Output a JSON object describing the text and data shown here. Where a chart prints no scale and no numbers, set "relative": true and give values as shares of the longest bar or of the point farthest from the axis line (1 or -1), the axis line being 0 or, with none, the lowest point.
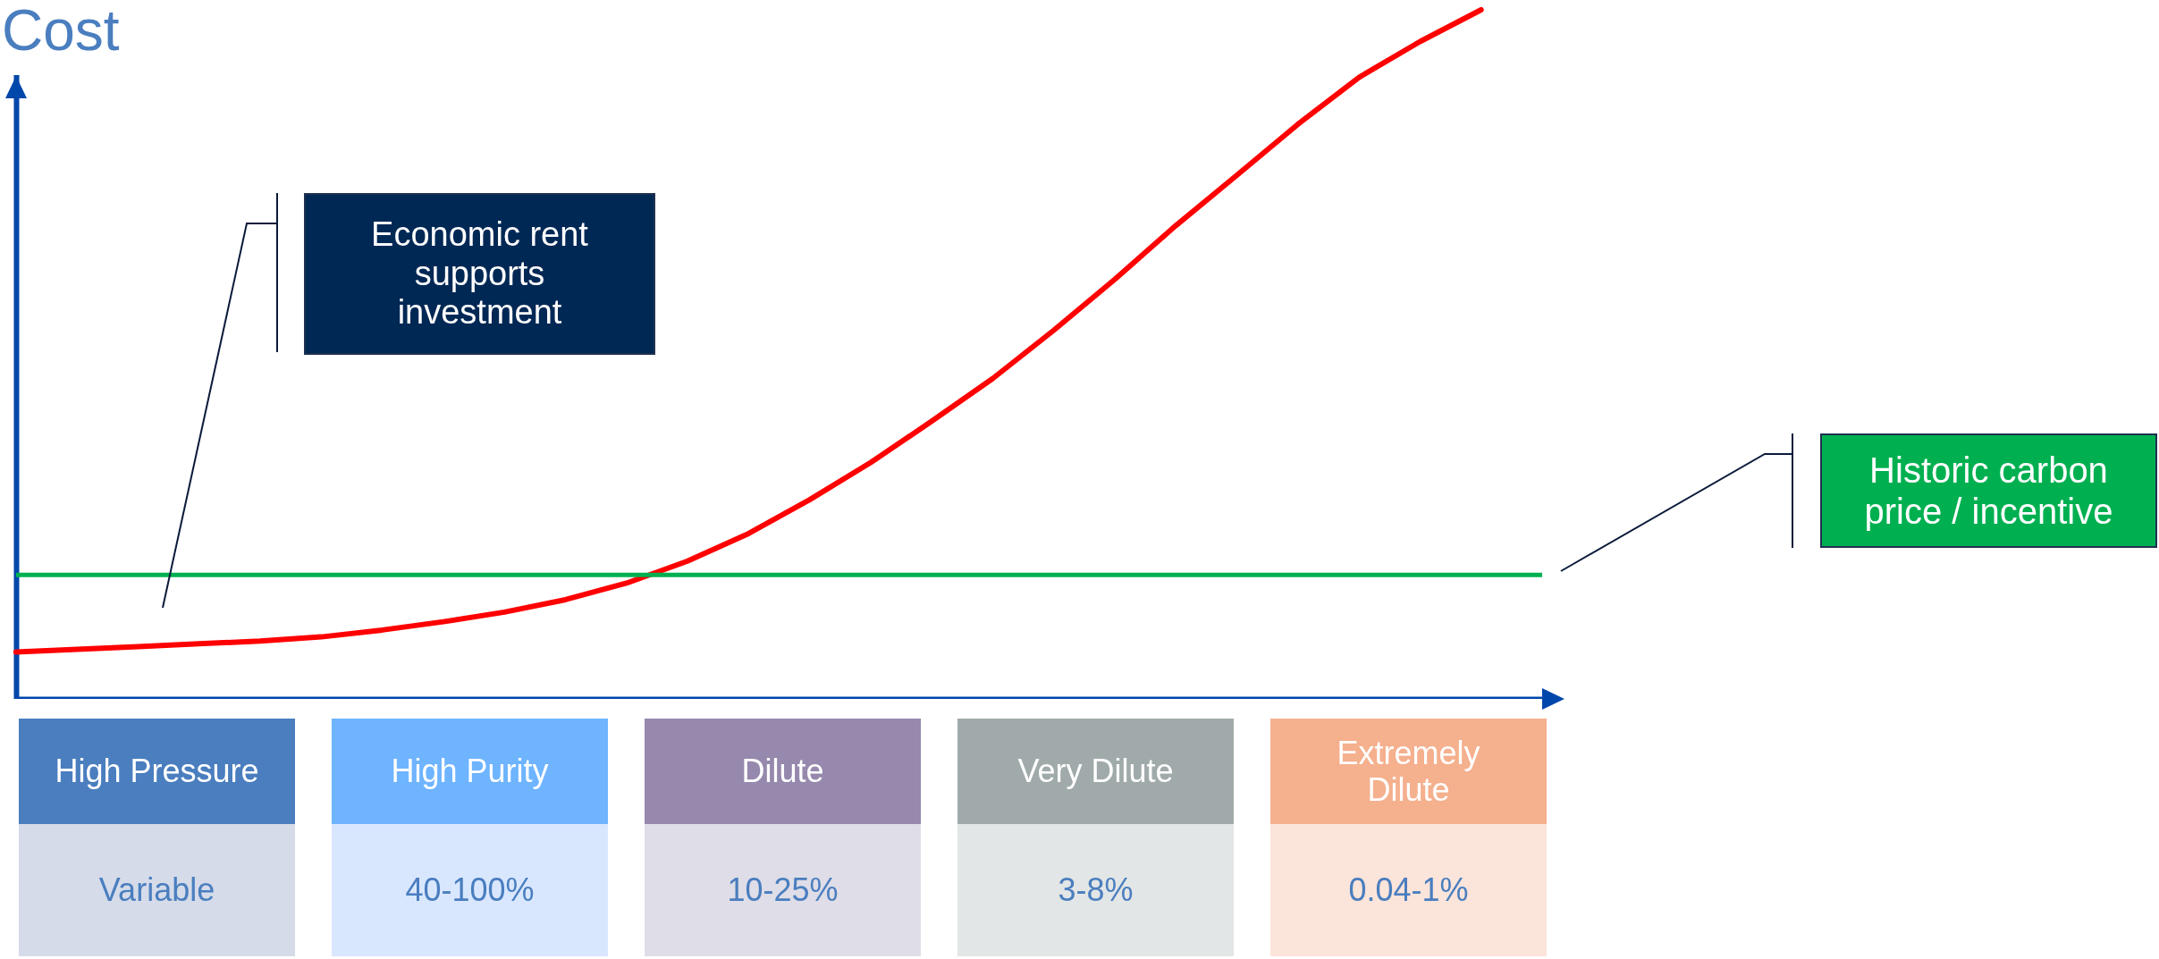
{
  "chart_data": {
    "type": "line",
    "relative": true,
    "ylabel": "Cost",
    "categories": [
      null,
      null,
      null,
      null,
      null,
      null,
      null,
      null,
      null,
      null,
      null,
      null,
      null,
      null,
      null,
      null,
      null,
      null,
      null,
      null,
      null,
      null,
      null,
      null,
      null,
      null
    ],
    "series": [
      {
        "color": "#ff0000",
        "values": [
          0.068,
          0.072,
          0.076,
          0.08,
          0.084,
          0.09,
          0.1,
          0.112,
          0.126,
          0.144,
          0.168,
          0.2,
          0.24,
          0.289,
          0.343,
          0.403,
          0.465,
          0.535,
          0.609,
          0.687,
          0.76,
          0.834,
          0.902,
          0.954,
          1.0,
          null
        ]
      }
    ],
    "ref_lines": [
      {
        "axis": "y",
        "value": 0.18,
        "color": "#00b050"
      }
    ],
    "annotations": [
      "Economic rent supports investment",
      "Historic carbon price / incentive",
      "High Pressure",
      "Variable",
      "High Purity",
      "40-100%",
      "Dilute",
      "10-25%",
      "Very Dilute",
      "3-8%",
      "Extremely Dilute",
      "0.04-1%"
    ],
    "grid": false,
    "marker": "none",
    "line_style": "solid"
  }
}
